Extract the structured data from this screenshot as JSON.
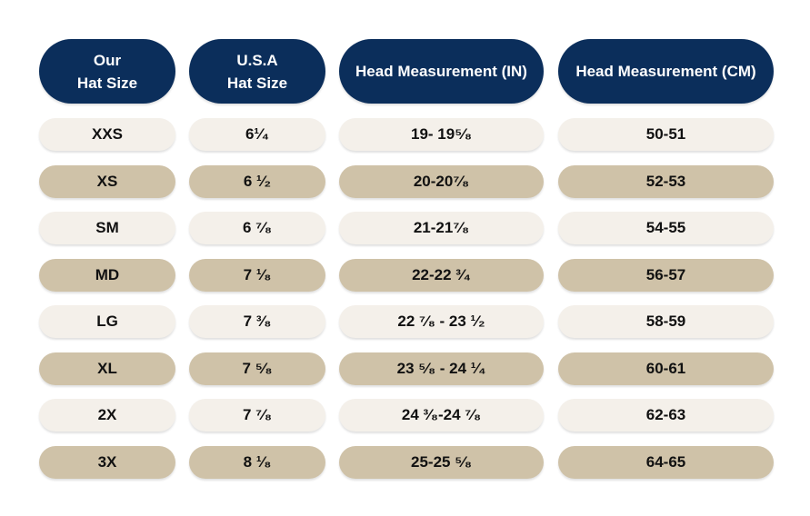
{
  "table": {
    "header": [
      [
        "Our",
        "Hat Size"
      ],
      [
        "U.S.A",
        "Hat Size"
      ],
      [
        "Head Measurement (IN)"
      ],
      [
        "Head Measurement (CM)"
      ]
    ],
    "rows": [
      [
        "XXS",
        "6¹⁄₄",
        "19- 19⁵⁄₈",
        "50-51"
      ],
      [
        "XS",
        "6 ¹⁄₂",
        "20-20⁷⁄₈",
        "52-53"
      ],
      [
        "SM",
        "6 ⁷⁄₈",
        "21-21⁷⁄₈",
        "54-55"
      ],
      [
        "MD",
        "7 ¹⁄₈",
        "22-22 ³⁄₄",
        "56-57"
      ],
      [
        "LG",
        "7 ³⁄₈",
        "22 ⁷⁄₈ - 23 ¹⁄₂",
        "58-59"
      ],
      [
        "XL",
        "7 ⁵⁄₈",
        "23 ⁵⁄₈ - 24 ¹⁄₄",
        "60-61"
      ],
      [
        "2X",
        "7 ⁷⁄₈",
        "24 ³⁄₈-24 ⁷⁄₈",
        "62-63"
      ],
      [
        "3X",
        "8 ¹⁄₈",
        "25-25 ⁵⁄₈",
        "64-65"
      ]
    ]
  }
}
